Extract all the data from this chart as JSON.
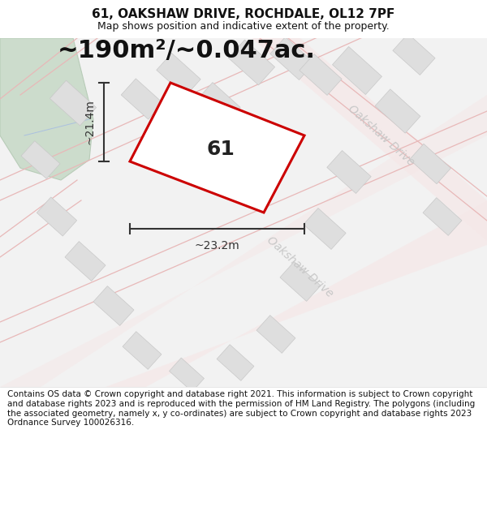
{
  "title": "61, OAKSHAW DRIVE, ROCHDALE, OL12 7PF",
  "subtitle": "Map shows position and indicative extent of the property.",
  "area_text": "~190m²/~0.047ac.",
  "width_label": "~23.2m",
  "height_label": "~21.4m",
  "plot_number": "61",
  "footer": "Contains OS data © Crown copyright and database right 2021. This information is subject to Crown copyright and database rights 2023 and is reproduced with the permission of HM Land Registry. The polygons (including the associated geometry, namely x, y co-ordinates) are subject to Crown copyright and database rights 2023 Ordnance Survey 100026316.",
  "bg_color": "#ffffff",
  "map_bg": "#f2f2f2",
  "plot_outline_color": "#cc0000",
  "building_fill": "#dedede",
  "building_outline": "#c8c8c8",
  "green_fill": "#ccdccc",
  "green_edge": "#b8ccb8",
  "road_line_color": "#e8b8b8",
  "road_fill_color": "#f5e8e8",
  "road_label_color": "#c8c8c8",
  "dim_color": "#333333",
  "title_fontsize": 11,
  "subtitle_fontsize": 9,
  "area_fontsize": 22,
  "plot_label_fontsize": 18,
  "road_label_fontsize": 10,
  "footer_fontsize": 7.5
}
